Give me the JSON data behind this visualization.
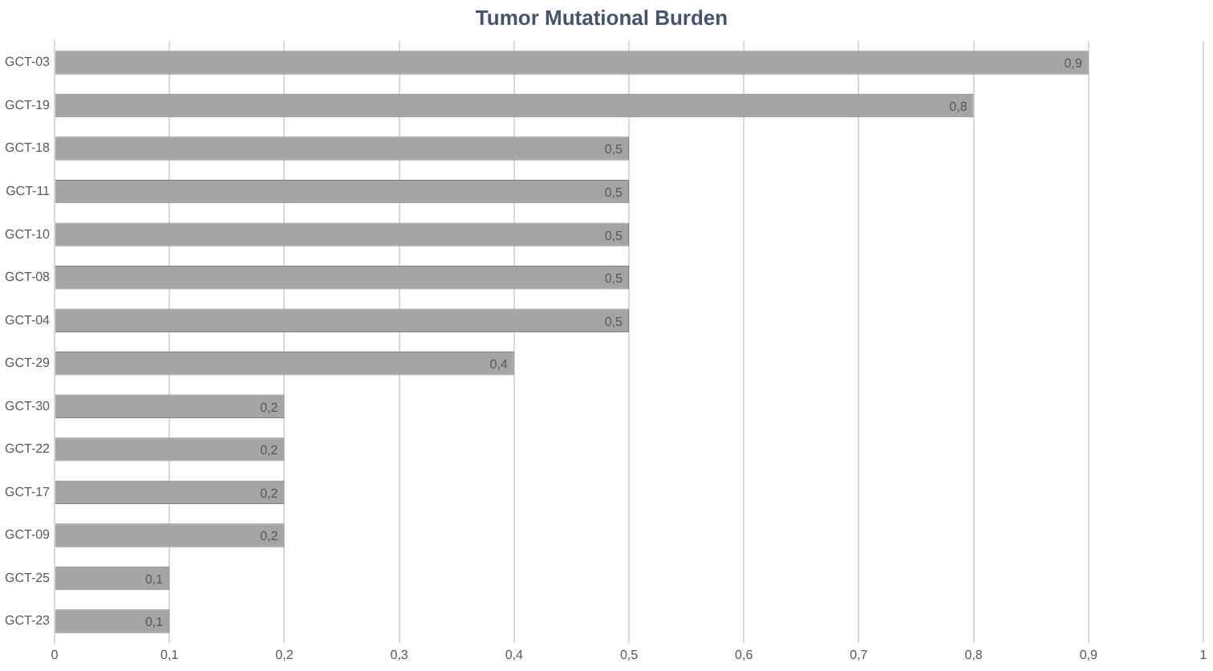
{
  "chart_data": {
    "type": "bar",
    "orientation": "horizontal",
    "title": "Tumor Mutational Burden",
    "categories": [
      "GCT-03",
      "GCT-19",
      "GCT-18",
      "GCT-11",
      "GCT-10",
      "GCT-08",
      "GCT-04",
      "GCT-29",
      "GCT-30",
      "GCT-22",
      "GCT-17",
      "GCT-09",
      "GCT-25",
      "GCT-23"
    ],
    "values": [
      0.9,
      0.8,
      0.5,
      0.5,
      0.5,
      0.5,
      0.5,
      0.4,
      0.2,
      0.2,
      0.2,
      0.2,
      0.1,
      0.1
    ],
    "value_labels": [
      "0,9",
      "0,8",
      "0,5",
      "0,5",
      "0,5",
      "0,5",
      "0,5",
      "0,4",
      "0,2",
      "0,2",
      "0,2",
      "0,2",
      "0,1",
      "0,1"
    ],
    "color": "#a5a5a5",
    "xlim": [
      0,
      1
    ],
    "xticks": [
      0,
      {
        "value": 0.1,
        "label": "0,1"
      },
      {
        "value": 0.2,
        "label": "0,2"
      },
      {
        "value": 0.3,
        "label": "0,3"
      },
      {
        "value": 0.4,
        "label": "0,4"
      },
      {
        "value": 0.5,
        "label": "0,5"
      },
      {
        "value": 0.6,
        "label": "0,6"
      },
      {
        "value": 0.7,
        "label": "0,7"
      },
      {
        "value": 0.8,
        "label": "0,8"
      },
      {
        "value": 0.9,
        "label": "0,9"
      },
      1
    ],
    "grid": "x",
    "legend": false
  }
}
